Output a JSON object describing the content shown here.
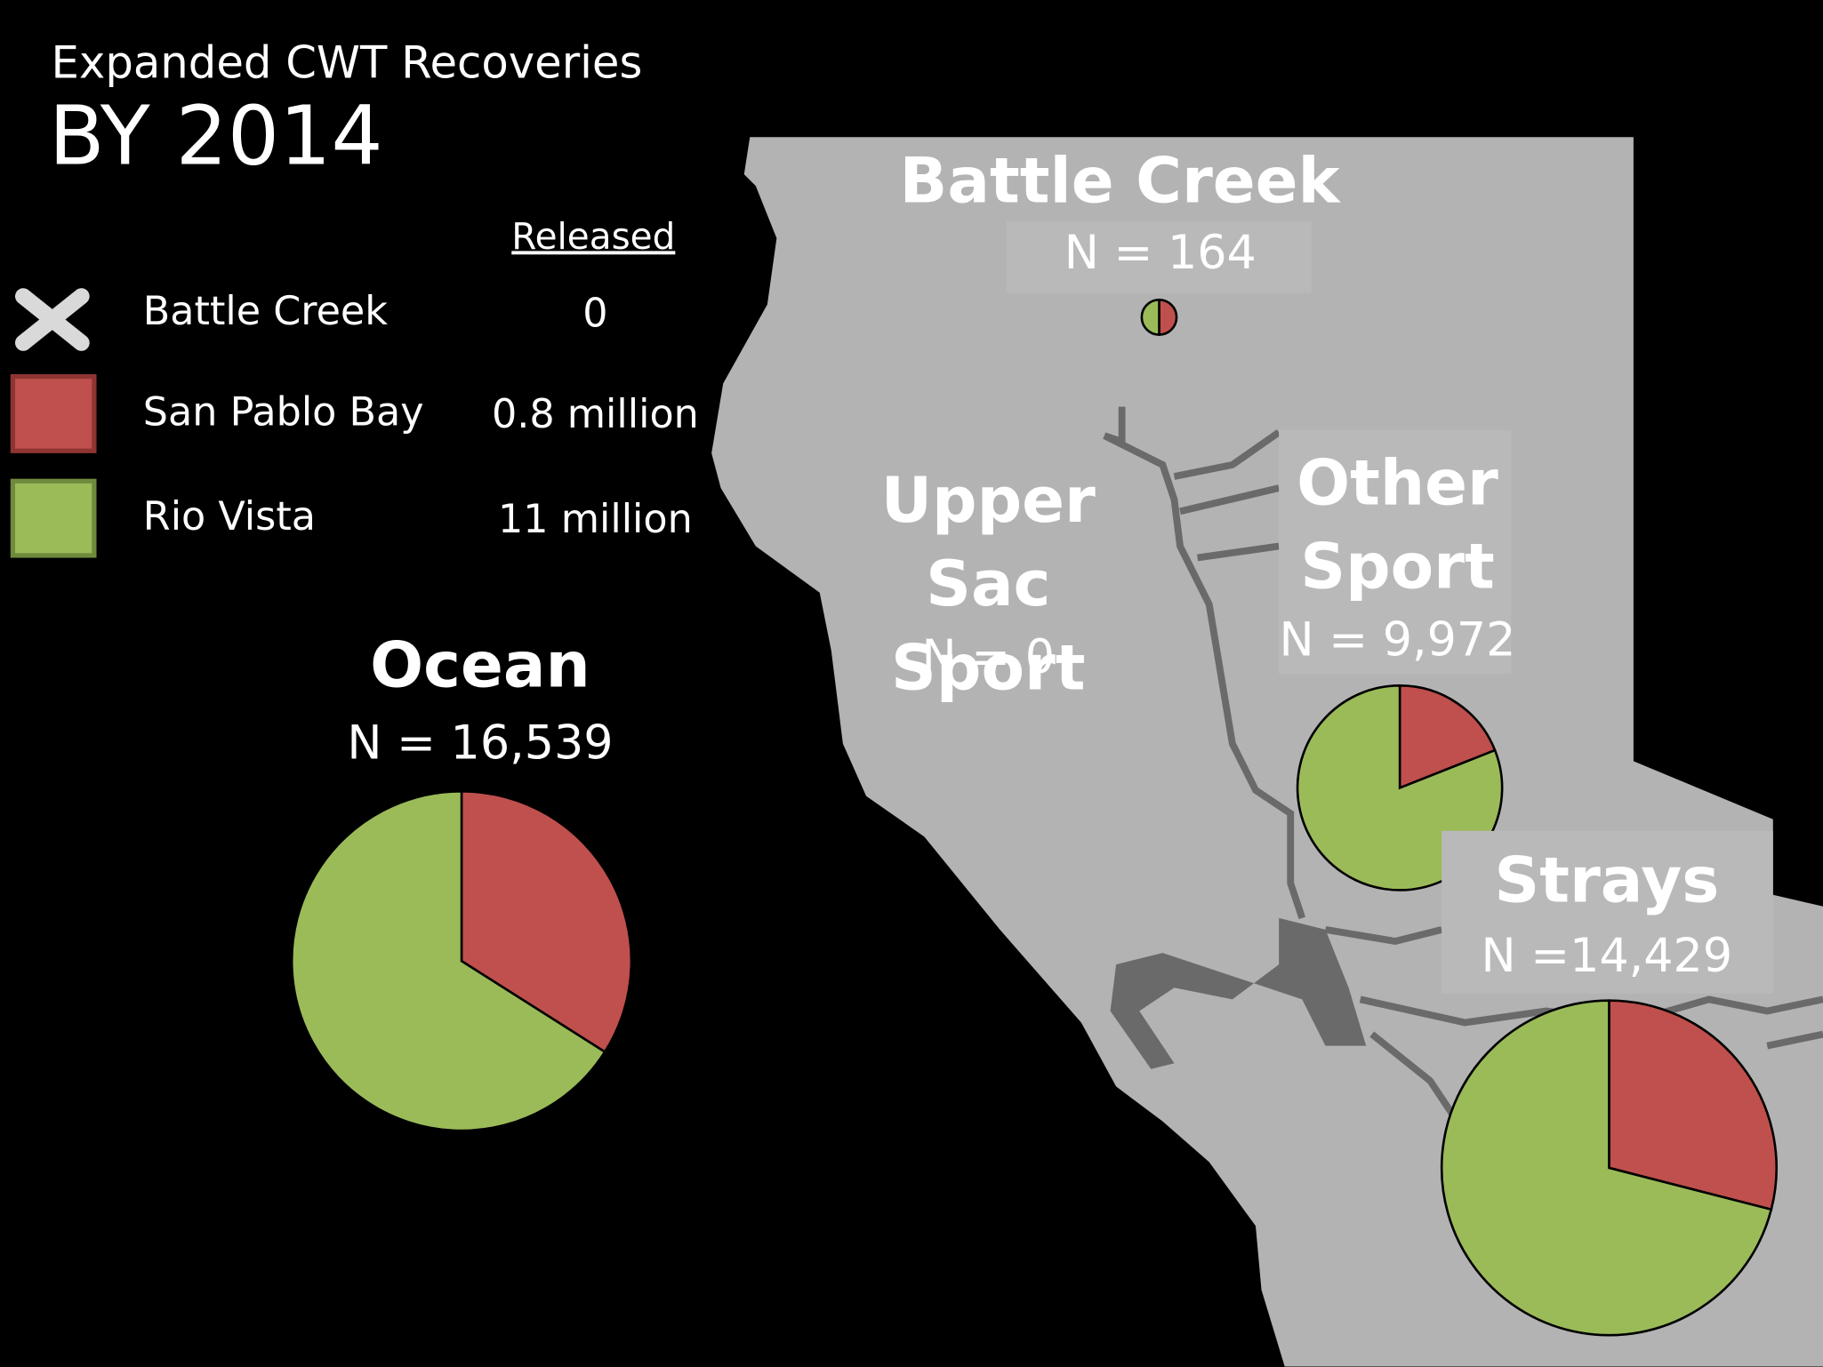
{
  "header": {
    "title": "Expanded CWT Recoveries",
    "subtitle": "BY 2014"
  },
  "legend": {
    "title": "Released",
    "items": [
      {
        "name": "Battle Creek",
        "released": "0",
        "color": "#d9d9d9"
      },
      {
        "name": "San Pablo Bay",
        "released": "0.8 million",
        "color": "#c0504d"
      },
      {
        "name": "Rio Vista",
        "released": "11 million",
        "color": "#9bbb59"
      }
    ]
  },
  "map_labels": [
    {
      "title": "Upper Sac Sport",
      "subtitle": "N = 0"
    }
  ],
  "chart_data": [
    {
      "type": "pie",
      "title": "Battle Creek",
      "subtitle": "N = 164",
      "values": [
        50,
        50
      ]
    },
    {
      "type": "pie",
      "title": "Other Sport",
      "subtitle": "N = 9,972",
      "values": [
        19,
        81
      ]
    },
    {
      "type": "pie",
      "title": "Strays",
      "subtitle": "N =14,429",
      "values": [
        29,
        71
      ]
    },
    {
      "type": "pie",
      "title": "Ocean",
      "subtitle": "N = 16,539",
      "values": [
        34,
        66
      ]
    }
  ]
}
